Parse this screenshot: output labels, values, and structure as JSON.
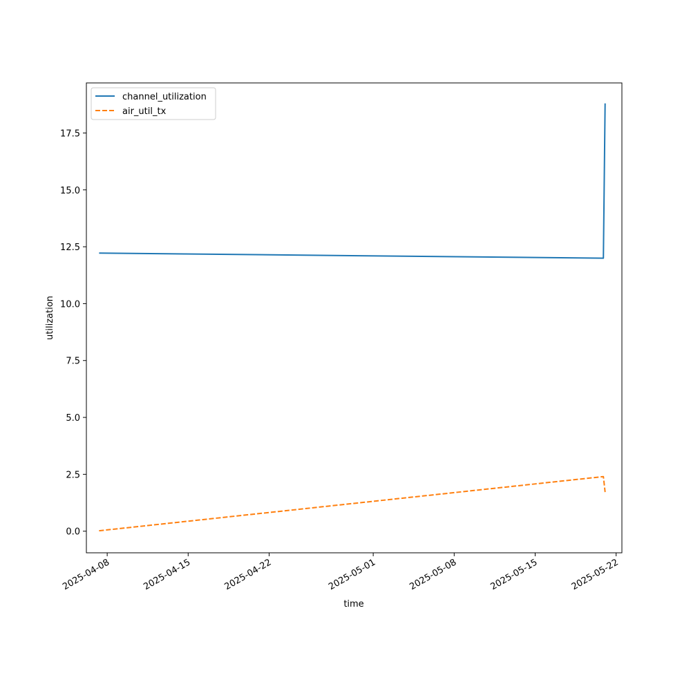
{
  "chart_data": {
    "type": "line",
    "xlabel": "time",
    "ylabel": "utilization",
    "x_type": "date",
    "x_ticks": [
      "2025-04-08",
      "2025-04-15",
      "2025-04-22",
      "2025-05-01",
      "2025-05-08",
      "2025-05-15",
      "2025-05-22"
    ],
    "y_ticks": [
      "0.0",
      "2.5",
      "5.0",
      "7.5",
      "10.0",
      "12.5",
      "15.0",
      "17.5"
    ],
    "xlim": [
      "2025-04-06",
      "2025-05-22"
    ],
    "ylim": [
      -0.95,
      19.7
    ],
    "grid": false,
    "legend_position": "upper left",
    "series": [
      {
        "name": "channel_utilization",
        "color": "#1f77b4",
        "style": "solid",
        "points": [
          {
            "x": "2025-04-07",
            "y": 12.22
          },
          {
            "x": "2025-05-20",
            "y": 12.0
          },
          {
            "x": "2025-05-20",
            "y": 18.8
          }
        ]
      },
      {
        "name": "air_util_tx",
        "color": "#ff7f0e",
        "style": "dashed",
        "points": [
          {
            "x": "2025-04-07",
            "y": 0.02
          },
          {
            "x": "2025-05-20",
            "y": 2.4
          },
          {
            "x": "2025-05-20",
            "y": 1.72
          }
        ]
      }
    ]
  }
}
